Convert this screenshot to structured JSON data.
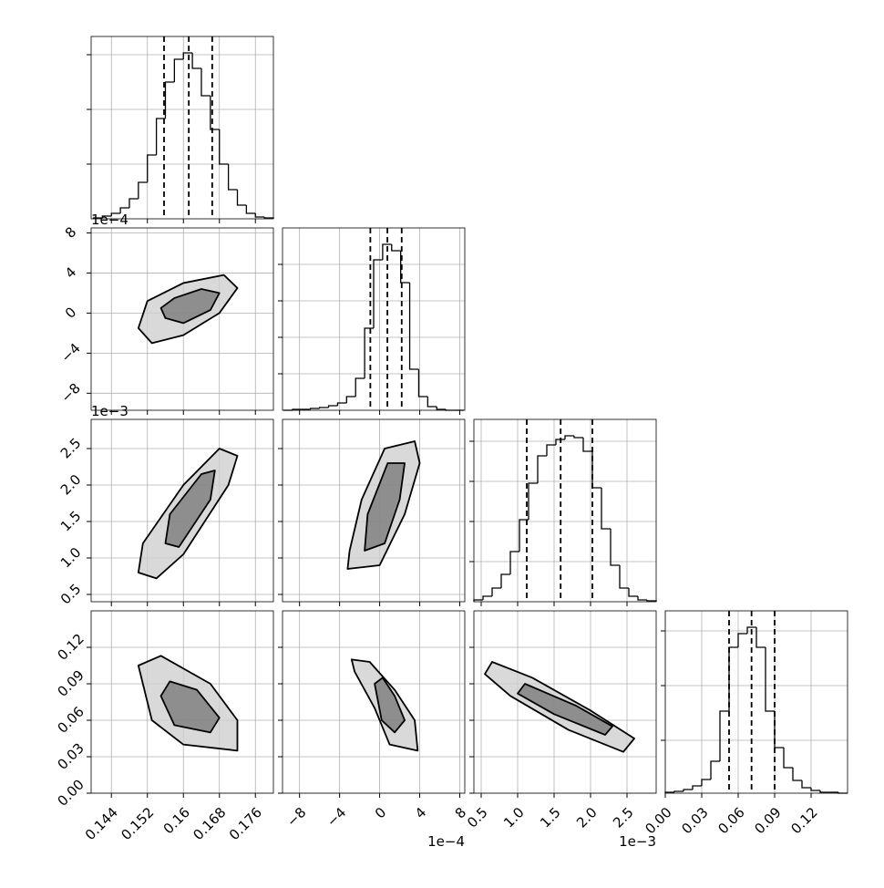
{
  "chart_data": {
    "type": "corner",
    "params": [
      {
        "lim": [
          0.1395,
          0.18
        ],
        "ticks": [
          0.144,
          0.152,
          0.16,
          0.168,
          0.176
        ]
      },
      {
        "lim": [
          -9.7,
          8.5
        ],
        "ticks": [
          {
            "value": -8,
            "label": "−8"
          },
          {
            "value": -4,
            "label": "−4"
          },
          0,
          4,
          8
        ],
        "offset": "1e−4"
      },
      {
        "lim": [
          0.4,
          2.9
        ],
        "ticks": [
          0.5,
          {
            "value": 1,
            "label": "1.0"
          },
          1.5,
          {
            "value": 2,
            "label": "2.0"
          },
          2.5
        ],
        "offset": "1e−3"
      },
      {
        "lim": [
          0,
          0.15
        ],
        "ticks": [
          {
            "value": 0,
            "label": "0.00"
          },
          {
            "value": 0.03,
            "label": "0.03"
          },
          {
            "value": 0.06,
            "label": "0.06"
          },
          {
            "value": 0.09,
            "label": "0.09"
          },
          {
            "value": 0.12,
            "label": "0.12"
          }
        ]
      }
    ],
    "hists": [
      {
        "bins": [
          0.14,
          0.142,
          0.144,
          0.146,
          0.148,
          0.15,
          0.152,
          0.154,
          0.156,
          0.158,
          0.16,
          0.162,
          0.164,
          0.166,
          0.168,
          0.17,
          0.172,
          0.174,
          0.176,
          0.178,
          0.18
        ],
        "counts": [
          1,
          3,
          6,
          12,
          22,
          40,
          70,
          110,
          150,
          175,
          182,
          165,
          135,
          98,
          60,
          32,
          15,
          6,
          2,
          1
        ],
        "quantiles": [
          0.1557,
          0.1612,
          0.1664
        ],
        "ylim": [
          0,
          200
        ],
        "yticks": [
          60,
          120,
          180
        ]
      },
      {
        "bins": [
          -9.6,
          -8.7,
          -7.8,
          -6.9,
          -6.0,
          -5.1,
          -4.2,
          -3.3,
          -2.4,
          -1.5,
          -0.6,
          0.3,
          1.2,
          2.1,
          3.0,
          3.9,
          4.8,
          5.7,
          6.6,
          7.5,
          8.4
        ],
        "counts": [
          0,
          1,
          1,
          2,
          3,
          5,
          8,
          15,
          35,
          90,
          165,
          182,
          175,
          140,
          45,
          15,
          4,
          1,
          0,
          0
        ],
        "quantiles": [
          -0.93,
          0.77,
          2.2
        ],
        "ylim": [
          0,
          200
        ],
        "yticks": [
          40,
          80,
          120,
          160
        ]
      },
      {
        "bins": [
          0.4,
          0.525,
          0.65,
          0.775,
          0.9,
          1.025,
          1.15,
          1.275,
          1.4,
          1.525,
          1.65,
          1.775,
          1.9,
          2.025,
          2.15,
          2.275,
          2.4,
          2.525,
          2.65,
          2.775,
          2.9
        ],
        "counts": [
          2,
          6,
          15,
          30,
          55,
          90,
          130,
          160,
          172,
          178,
          182,
          180,
          165,
          125,
          80,
          40,
          15,
          6,
          2,
          1
        ],
        "quantiles": [
          1.125,
          1.59,
          2.025
        ],
        "ylim": [
          0,
          200
        ],
        "yticks": [
          44,
          88,
          132,
          176
        ]
      },
      {
        "bins": [
          0,
          0.0075,
          0.015,
          0.0225,
          0.03,
          0.0375,
          0.045,
          0.0525,
          0.06,
          0.0675,
          0.075,
          0.0825,
          0.09,
          0.0975,
          0.105,
          0.1125,
          0.12,
          0.1275,
          0.135,
          0.1425,
          0.15
        ],
        "counts": [
          1,
          2,
          4,
          8,
          15,
          35,
          90,
          160,
          175,
          182,
          160,
          90,
          50,
          28,
          14,
          6,
          3,
          1,
          1,
          0
        ],
        "quantiles": [
          0.0525,
          0.071,
          0.09
        ],
        "ylim": [
          0,
          200
        ],
        "yticks": [
          58,
          118,
          178
        ]
      }
    ],
    "panels": [
      {
        "x_param": 0,
        "y_param": 1,
        "contours": [
          {
            "x": [
              0.15,
              0.153,
              0.16,
              0.168,
              0.172,
              0.169,
              0.16,
              0.152
            ],
            "y": [
              -1.5,
              -3.0,
              -2.2,
              0.0,
              2.5,
              3.8,
              3.0,
              1.2
            ]
          },
          {
            "x": [
              0.156,
              0.16,
              0.166,
              0.168,
              0.164,
              0.158,
              0.155
            ],
            "y": [
              -0.5,
              -1.0,
              0.3,
              2.0,
              2.4,
              1.5,
              0.5
            ]
          }
        ]
      },
      {
        "x_param": 0,
        "y_param": 2,
        "contours": [
          {
            "x": [
              0.15,
              0.154,
              0.16,
              0.17,
              0.172,
              0.168,
              0.16,
              0.151
            ],
            "y": [
              0.8,
              0.72,
              1.05,
              2.0,
              2.4,
              2.5,
              2.0,
              1.2
            ]
          },
          {
            "x": [
              0.156,
              0.159,
              0.166,
              0.167,
              0.164,
              0.157
            ],
            "y": [
              1.2,
              1.15,
              1.8,
              2.2,
              2.15,
              1.6
            ]
          }
        ]
      },
      {
        "x_param": 1,
        "y_param": 2,
        "contours": [
          {
            "x": [
              -3.2,
              0,
              2.5,
              4.0,
              3.5,
              0.5,
              -1.8,
              -3.0
            ],
            "y": [
              0.85,
              0.9,
              1.6,
              2.3,
              2.6,
              2.5,
              1.8,
              1.1
            ]
          },
          {
            "x": [
              -1.5,
              0.5,
              2.0,
              2.5,
              0.8,
              -1.2
            ],
            "y": [
              1.1,
              1.2,
              1.8,
              2.3,
              2.3,
              1.6
            ]
          }
        ]
      },
      {
        "x_param": 0,
        "y_param": 3,
        "contours": [
          {
            "x": [
              0.151,
              0.153,
              0.16,
              0.172,
              0.172,
              0.166,
              0.155,
              0.15
            ],
            "y": [
              0.09,
              0.06,
              0.04,
              0.035,
              0.06,
              0.09,
              0.113,
              0.105
            ]
          },
          {
            "x": [
              0.155,
              0.158,
              0.166,
              0.168,
              0.163,
              0.157
            ],
            "y": [
              0.08,
              0.056,
              0.05,
              0.062,
              0.085,
              0.092
            ]
          }
        ]
      },
      {
        "x_param": 1,
        "y_param": 3,
        "contours": [
          {
            "x": [
              -2.5,
              -0.5,
              1.0,
              3.8,
              3.5,
              1.5,
              -1.0,
              -2.8
            ],
            "y": [
              0.1,
              0.07,
              0.04,
              0.035,
              0.06,
              0.085,
              0.108,
              0.11
            ]
          },
          {
            "x": [
              -0.5,
              0.2,
              1.5,
              2.5,
              1.5,
              0.3
            ],
            "y": [
              0.09,
              0.06,
              0.05,
              0.06,
              0.08,
              0.095
            ]
          }
        ]
      },
      {
        "x_param": 2,
        "y_param": 3,
        "contours": [
          {
            "x": [
              0.65,
              1.2,
              2.0,
              2.6,
              2.45,
              1.7,
              0.9,
              0.55
            ],
            "y": [
              0.108,
              0.095,
              0.068,
              0.045,
              0.034,
              0.052,
              0.08,
              0.098
            ]
          },
          {
            "x": [
              1.1,
              1.8,
              2.3,
              2.2,
              1.5,
              1.0
            ],
            "y": [
              0.09,
              0.072,
              0.055,
              0.048,
              0.065,
              0.082
            ]
          }
        ]
      }
    ]
  }
}
